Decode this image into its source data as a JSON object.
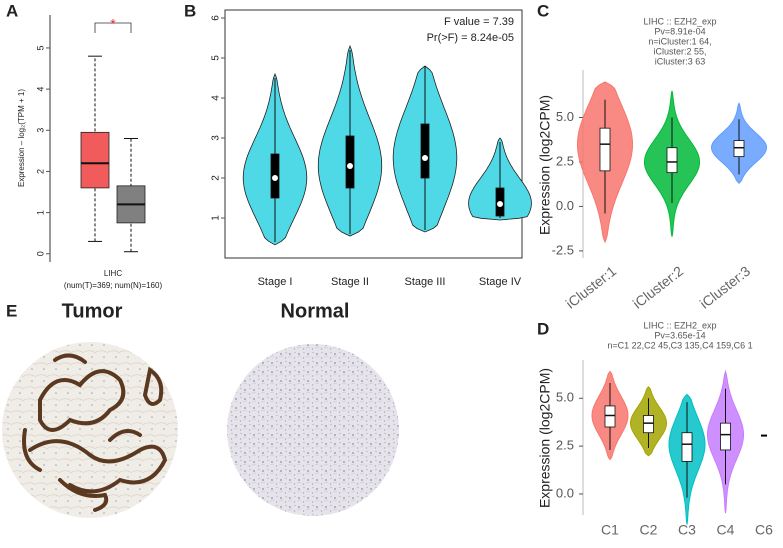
{
  "chart_data": [
    {
      "type": "box",
      "panel": "A",
      "ylabel": "Expression – log₂(TPM + 1)",
      "xlabel": "LIHC",
      "xsublabel": "(num(T)=369; num(N)=160)",
      "annotation": "*",
      "ylim": [
        -0.2,
        5.8
      ],
      "yticks": [
        0,
        1,
        2,
        3,
        4,
        5
      ],
      "series": [
        {
          "color": "#f15b5b",
          "whislo": 0.3,
          "q1": 1.6,
          "median": 2.2,
          "q3": 2.95,
          "whishi": 4.8
        },
        {
          "color": "#808080",
          "whislo": 0.05,
          "q1": 0.75,
          "median": 1.2,
          "q3": 1.65,
          "whishi": 2.8
        }
      ]
    },
    {
      "type": "violin",
      "panel": "B",
      "annotations": [
        "F value = 7.39",
        "Pr(>F) = 8.24e-05"
      ],
      "categories": [
        "Stage I",
        "Stage II",
        "Stage III",
        "Stage IV"
      ],
      "ylim": [
        0,
        6.2
      ],
      "yticks": [
        1,
        2,
        3,
        4,
        5,
        6
      ],
      "box_fill": "#000000",
      "series": [
        {
          "color": "#4fd9e6",
          "min": 0.33,
          "max": 4.6,
          "whislo": 0.4,
          "q1": 1.5,
          "median": 2.0,
          "q3": 2.6,
          "whishi": 4.5
        },
        {
          "color": "#4fd9e6",
          "min": 0.55,
          "max": 5.3,
          "whislo": 0.6,
          "q1": 1.75,
          "median": 2.3,
          "q3": 3.05,
          "whishi": 5.2
        },
        {
          "color": "#4fd9e6",
          "min": 0.65,
          "max": 4.8,
          "whislo": 0.7,
          "q1": 2.0,
          "median": 2.5,
          "q3": 3.35,
          "whishi": 4.8
        },
        {
          "color": "#4fd9e6",
          "min": 0.95,
          "max": 3.0,
          "whislo": 1.0,
          "q1": 1.05,
          "median": 1.35,
          "q3": 1.75,
          "whishi": 2.9
        }
      ]
    },
    {
      "type": "violin",
      "panel": "C",
      "title_lines": [
        "LIHC :: EZH2_exp",
        "Pv=8.91e-04",
        "n=iCluster:1 64,",
        "iCluster:2 55,",
        "iCluster:3 63"
      ],
      "ylabel": "Expression (log2CPM)",
      "categories": [
        "iCluster:1",
        "iCluster:2",
        "iCluster:3"
      ],
      "ylim": [
        -2.9,
        7.67
      ],
      "yticks": [
        -2.5,
        {
          "value": 0,
          "label": "0.0"
        },
        2.5,
        {
          "value": 5,
          "label": "5.0"
        }
      ],
      "box_fill": "#ffffff",
      "series": [
        {
          "color": "#f8766d",
          "min": -2.0,
          "max": 7.0,
          "whislo": -0.4,
          "q1": 2.0,
          "median": 3.5,
          "q3": 4.4,
          "whishi": 6.0
        },
        {
          "color": "#00ba38",
          "min": -1.7,
          "max": 6.5,
          "whislo": 0.2,
          "q1": 1.9,
          "median": 2.5,
          "q3": 3.3,
          "whishi": 5.0
        },
        {
          "color": "#619cff",
          "min": 1.3,
          "max": 5.8,
          "whislo": 1.8,
          "q1": 2.8,
          "median": 3.3,
          "q3": 3.7,
          "whishi": 4.9
        }
      ]
    },
    {
      "type": "violin",
      "panel": "D",
      "title_lines": [
        "LIHC :: EZH2_exp",
        "Pv=3.65e-14",
        "n=C1 22,C2 45,C3 135,C4 159,C6 1"
      ],
      "ylabel": "Expression (log2CPM)",
      "categories": [
        "C1",
        "C2",
        "C3",
        "C4",
        "C6"
      ],
      "ylim": [
        -1.1,
        7.0
      ],
      "yticks": [
        {
          "value": 0,
          "label": "0.0"
        },
        2.5,
        {
          "value": 5,
          "label": "5.0"
        }
      ],
      "box_fill": "#ffffff",
      "series": [
        {
          "color": "#f8766d",
          "min": 1.8,
          "max": 6.4,
          "whislo": 2.3,
          "q1": 3.5,
          "median": 4.1,
          "q3": 4.6,
          "whishi": 5.8
        },
        {
          "color": "#a3a500",
          "min": 2.0,
          "max": 5.6,
          "whislo": 2.4,
          "q1": 3.2,
          "median": 3.7,
          "q3": 4.1,
          "whishi": 5.0
        },
        {
          "color": "#00bfc4",
          "min": -1.6,
          "max": 5.2,
          "whislo": -0.2,
          "q1": 1.7,
          "median": 2.6,
          "q3": 3.2,
          "whishi": 4.8
        },
        {
          "color": "#c77cff",
          "min": -1.0,
          "max": 6.4,
          "whislo": 0.5,
          "q1": 2.3,
          "median": 3.1,
          "q3": 3.7,
          "whishi": 5.5
        },
        {
          "color": "#000000",
          "median": 3.05
        }
      ]
    }
  ],
  "tissue_images": {
    "panel": "E",
    "tumor": "Tumor",
    "normal": "Normal"
  }
}
